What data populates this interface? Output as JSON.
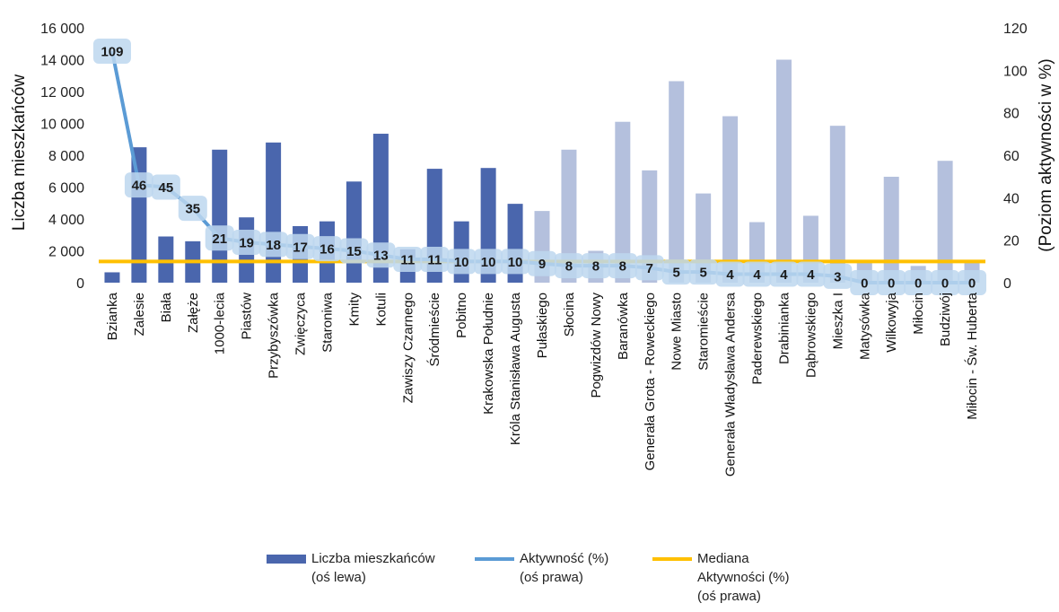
{
  "chart_data": {
    "type": "bar",
    "categories": [
      "Bzianka",
      "Zalesie",
      "Biała",
      "Załęże",
      "1000-lecia",
      "Piastów",
      "Przybyszówka",
      "Zwięczyca",
      "Staroniwa",
      "Kmity",
      "Kotuli",
      "Zawiszy Czarnego",
      "Śródmieście",
      "Pobitno",
      "Krakowska Południe",
      "Króla Stanisława Augusta",
      "Pułaskiego",
      "Słocina",
      "Pogwizdów Nowy",
      "Baranówka",
      "Generała Grota - Roweckiego",
      "Nowe Miasto",
      "Staromieście",
      "Generała Władysława Andersa",
      "Paderewskiego",
      "Drabinianka",
      "Dąbrowskiego",
      "Mieszka I",
      "Matysówka",
      "Wilkowyja",
      "Miłocin",
      "Budziwój",
      "Miłocin - Św. Huberta"
    ],
    "series": [
      {
        "name": "Liczba mieszkańców\n(oś lewa)",
        "axis": "left",
        "kind": "bar",
        "values": [
          650,
          8500,
          2900,
          2600,
          8350,
          4100,
          8800,
          3550,
          3850,
          6350,
          9350,
          2100,
          7150,
          3850,
          7200,
          4950,
          4500,
          8350,
          2000,
          10100,
          7050,
          12650,
          5600,
          10450,
          3800,
          14000,
          4200,
          9850,
          1400,
          6650,
          1050,
          7650,
          1300
        ]
      },
      {
        "name": "Aktywność (%)\n(oś prawa)",
        "axis": "right",
        "kind": "line",
        "values": [
          109,
          46,
          45,
          35,
          21,
          19,
          18,
          17,
          16,
          15,
          13,
          11,
          11,
          10,
          10,
          10,
          9,
          8,
          8,
          8,
          7,
          5,
          5,
          4,
          4,
          4,
          4,
          3,
          0,
          0,
          0,
          0,
          0
        ]
      },
      {
        "name": "Mediana\nAktywności (%)\n(oś prawa)",
        "axis": "right",
        "kind": "line",
        "values": [
          10,
          10,
          10,
          10,
          10,
          10,
          10,
          10,
          10,
          10,
          10,
          10,
          10,
          10,
          10,
          10,
          10,
          10,
          10,
          10,
          10,
          10,
          10,
          10,
          10,
          10,
          10,
          10,
          10,
          10,
          10,
          10,
          10
        ]
      }
    ],
    "data_labels": [
      "109",
      "46",
      "45",
      "35",
      "21",
      "19",
      "18",
      "17",
      "16",
      "15",
      "13",
      "11",
      "11",
      "10",
      "10",
      "10",
      "9",
      "8",
      "8",
      "8",
      "7",
      "5",
      "5",
      "4",
      "4",
      "4",
      "4",
      "3",
      "0",
      "0",
      "0",
      "0",
      "0"
    ],
    "highlight_count": 16,
    "ylabel": "Liczba mieszkańców",
    "y2label": "(Poziom aktywności w %)",
    "ylim": [
      0,
      16000
    ],
    "y2lim": [
      0,
      120
    ],
    "yticks": [
      "0",
      "2 000",
      "4 000",
      "6 000",
      "8 000",
      "10 000",
      "12 000",
      "14 000",
      "16 000"
    ],
    "y2ticks": [
      "0",
      "20",
      "40",
      "60",
      "80",
      "100",
      "120"
    ],
    "grid": false,
    "legend_position": "bottom",
    "colors": {
      "bar_dark": "#4a66ad",
      "bar_light": "#b4c0dd",
      "line_activity": "#5b9bd5",
      "line_median": "#ffc000",
      "label_box": "#bdd7ee"
    }
  }
}
